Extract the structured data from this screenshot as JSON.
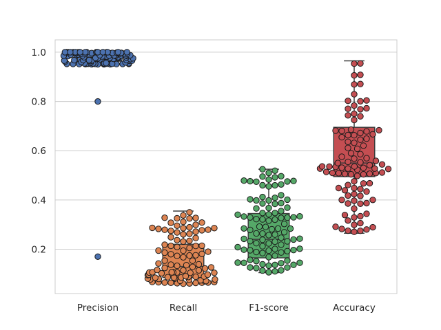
{
  "chart_data": {
    "type": "box",
    "overlay": "swarm",
    "title": "",
    "xlabel": "",
    "ylabel": "",
    "ylim": [
      0.02,
      1.05
    ],
    "yticks": [
      0.2,
      0.4,
      0.6,
      0.8,
      1.0
    ],
    "ytick_labels": [
      "0.2",
      "0.4",
      "0.6",
      "0.8",
      "1.0"
    ],
    "grid": "horizontal",
    "categories": [
      "Precision",
      "Recall",
      "F1-score",
      "Accuracy"
    ],
    "colors": [
      "#4c72b0",
      "#dd8452",
      "#55a868",
      "#c44e52"
    ],
    "boxes": [
      {
        "name": "Precision",
        "whisker_low": 0.95,
        "q1": 0.955,
        "median": 0.98,
        "q3": 1.0,
        "whisker_high": 1.0,
        "outliers": [
          0.8,
          0.17
        ]
      },
      {
        "name": "Recall",
        "whisker_low": 0.06,
        "q1": 0.085,
        "median": 0.13,
        "q3": 0.22,
        "whisker_high": 0.355,
        "outliers": []
      },
      {
        "name": "F1-score",
        "whisker_low": 0.105,
        "q1": 0.165,
        "median": 0.24,
        "q3": 0.345,
        "whisker_high": 0.525,
        "outliers": []
      },
      {
        "name": "Accuracy",
        "whisker_low": 0.265,
        "q1": 0.495,
        "median": 0.55,
        "q3": 0.695,
        "whisker_high": 0.965,
        "outliers": []
      }
    ],
    "swarm_counts": [
      100,
      100,
      100,
      100
    ]
  }
}
